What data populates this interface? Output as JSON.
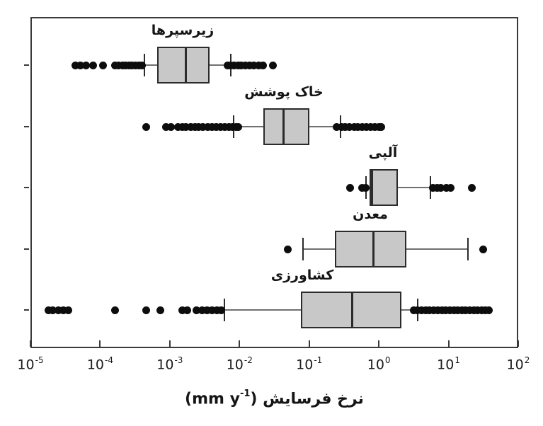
{
  "figure": {
    "background": "#ffffff",
    "frame_color": "#3a3a3a",
    "box_fill": "#c8c8c8",
    "box_border": "#2b2b2b",
    "whisker_color": "#707070",
    "dot_color": "#0d0d0d",
    "text_color": "#151515"
  },
  "x_axis": {
    "title_rtl": "نرخ فرسایش",
    "title_unit_pre": "(mm y",
    "title_unit_sup": "-1",
    "title_unit_post": ")",
    "scale": "log",
    "ticks": [
      {
        "base": "10",
        "exp": "-5"
      },
      {
        "base": "10",
        "exp": "-4"
      },
      {
        "base": "10",
        "exp": "-3"
      },
      {
        "base": "10",
        "exp": "-2"
      },
      {
        "base": "10",
        "exp": "-1"
      },
      {
        "base": "10",
        "exp": "0"
      },
      {
        "base": "10",
        "exp": "1"
      },
      {
        "base": "10",
        "exp": "2"
      }
    ]
  },
  "chart_data": {
    "type": "boxplot-horizontal",
    "title": "",
    "xlabel": "نرخ فرسایش (mm y^-1)",
    "x_scale": "log10",
    "xlim": [
      1e-05,
      100
    ],
    "grid": false,
    "series": [
      {
        "name": "زیرسپرها",
        "whisker_low": 0.00043,
        "q1": 0.00066,
        "median": 0.0017,
        "q3": 0.0037,
        "whisker_high": 0.0075,
        "outliers_low": [
          4.4e-05,
          5.2e-05,
          6.3e-05,
          8e-05,
          0.00011,
          0.000165,
          0.000185,
          0.00021,
          0.00023,
          0.00026,
          0.00029,
          0.00032,
          0.00036,
          0.0004
        ],
        "outliers_high": [
          0.0068,
          0.0075,
          0.0083,
          0.0095,
          0.0105,
          0.012,
          0.014,
          0.016,
          0.019,
          0.022,
          0.03
        ]
      },
      {
        "name": "خاک پوشش",
        "whisker_low": 0.0082,
        "q1": 0.022,
        "median": 0.043,
        "q3": 0.1,
        "whisker_high": 0.28,
        "outliers_low": [
          0.00046,
          0.00089,
          0.00105,
          0.0013,
          0.0015,
          0.0017,
          0.002,
          0.0023,
          0.0026,
          0.003,
          0.0035,
          0.004,
          0.0046,
          0.0053,
          0.0061,
          0.007,
          0.008,
          0.009,
          0.0097
        ],
        "outliers_high": [
          0.25,
          0.29,
          0.33,
          0.38,
          0.44,
          0.5,
          0.58,
          0.66,
          0.76,
          0.87,
          1.0,
          1.07
        ]
      },
      {
        "name": "آلپی",
        "whisker_low": 0.66,
        "q1": 0.73,
        "median": 0.8,
        "q3": 1.86,
        "whisker_high": 5.5,
        "outliers_low": [
          0.39,
          0.58,
          0.65
        ],
        "outliers_high": [
          5.9,
          6.8,
          7.8,
          9.2,
          10.6,
          21.8
        ]
      },
      {
        "name": "معدن",
        "whisker_low": 0.082,
        "q1": 0.235,
        "median": 0.83,
        "q3": 2.5,
        "whisker_high": 19,
        "outliers_low": [
          0.049
        ],
        "outliers_high": [
          31.5
        ]
      },
      {
        "name": "کشاورزی",
        "whisker_low": 0.0061,
        "q1": 0.076,
        "median": 0.41,
        "q3": 2.1,
        "whisker_high": 3.6,
        "outliers_low": [
          1.8e-05,
          2.1e-05,
          2.5e-05,
          3e-05,
          3.5e-05,
          0.000165,
          0.00046,
          0.00074,
          0.0015,
          0.0018,
          0.0024,
          0.0029,
          0.0034,
          0.004,
          0.0047,
          0.0055
        ],
        "outliers_high": [
          3.2,
          3.6,
          4.1,
          4.7,
          5.3,
          6.1,
          7.0,
          8.0,
          9.1,
          10.4,
          11.9,
          13.6,
          15.5,
          17.7,
          20,
          23,
          26,
          30,
          34,
          38
        ]
      }
    ]
  }
}
